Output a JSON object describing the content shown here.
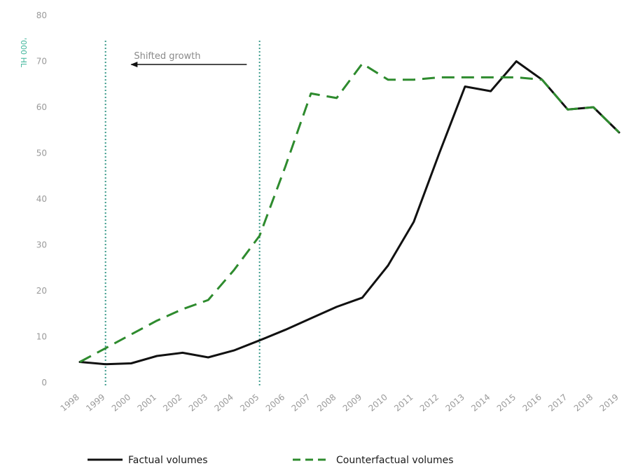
{
  "chart_data": {
    "type": "line",
    "title": "",
    "xlabel": "",
    "ylabel": "'000 HL",
    "ylim": [
      0,
      80
    ],
    "yticks": [
      0,
      10,
      20,
      30,
      40,
      50,
      60,
      70,
      80
    ],
    "grid": false,
    "categories": [
      "1998",
      "1999",
      "2000",
      "2001",
      "2002",
      "2003",
      "2004",
      "2005",
      "2006",
      "2007",
      "2008",
      "2009",
      "2010",
      "2011",
      "2012",
      "2013",
      "2014",
      "2015",
      "2016",
      "2017",
      "2018",
      "2019"
    ],
    "series": [
      {
        "name": "Factual volumes",
        "color": "#111111",
        "style": "solid",
        "values": [
          4.5,
          4.0,
          4.2,
          5.8,
          6.5,
          5.5,
          7.0,
          9.2,
          11.5,
          14.0,
          16.5,
          18.5,
          25.5,
          35.0,
          50.0,
          64.5,
          63.5,
          70.0,
          66.0,
          59.5,
          60.0,
          54.5
        ]
      },
      {
        "name": "Counterfactual volumes",
        "color": "#2e8b2e",
        "style": "dashed",
        "values": [
          4.5,
          7.5,
          10.5,
          13.5,
          16.0,
          18.0,
          24.5,
          32.0,
          47.0,
          63.0,
          62.0,
          69.5,
          66.0,
          66.0,
          66.5,
          66.5,
          66.5,
          66.5,
          66.0,
          59.5,
          60.0,
          54.5
        ]
      }
    ],
    "vlines": [
      {
        "x": "1999",
        "color": "#3a9a8a",
        "style": "dotted"
      },
      {
        "x": "2005",
        "color": "#3a9a8a",
        "style": "dotted"
      }
    ],
    "annotations": [
      {
        "text": "Shifted growth",
        "arrow": "left",
        "from_x": "2004.5",
        "to_x": "2000",
        "y": 69
      }
    ],
    "legend": {
      "placement": "bottom"
    }
  }
}
